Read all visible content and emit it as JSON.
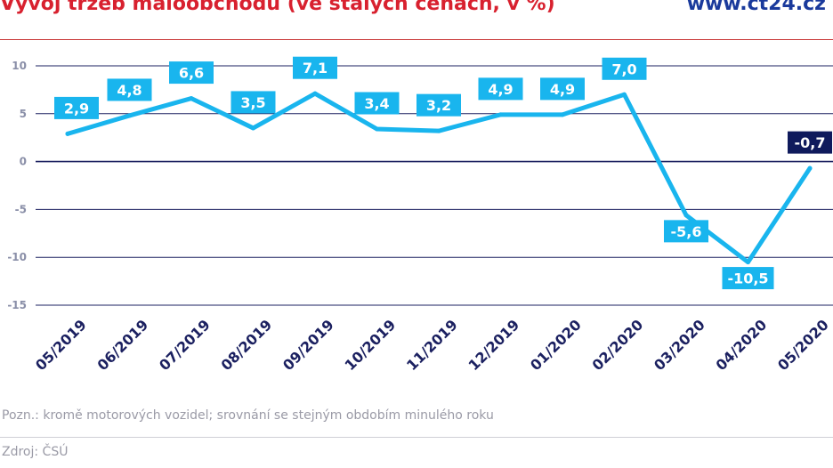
{
  "header": {
    "title": "Vývoj tržeb maloobchodu (ve stálých cenách, v %)",
    "brand": "www.ct24.cz"
  },
  "footer": {
    "note": "Pozn.: kromě motorových vozidel; srovnání se stejným obdobím minulého roku",
    "source": "Zdroj: ČSÚ"
  },
  "colors": {
    "title": "#d8212f",
    "brand": "#1a3a9c",
    "line": "#19b5ee",
    "highlight": "#0f1a5c",
    "axis_text": "#8a8fa8",
    "grid": "#1b2060"
  },
  "chart_data": {
    "type": "line",
    "categories": [
      "05/2019",
      "06/2019",
      "07/2019",
      "08/2019",
      "09/2019",
      "10/2019",
      "11/2019",
      "12/2019",
      "01/2020",
      "02/2020",
      "03/2020",
      "04/2020",
      "05/2020"
    ],
    "series": [
      {
        "values": [
          2.9,
          4.8,
          6.6,
          3.5,
          7.1,
          3.4,
          3.2,
          4.9,
          4.9,
          7.0,
          -5.6,
          -10.5,
          -0.7
        ],
        "labels": [
          "2,9",
          "4,8",
          "6,6",
          "3,5",
          "7,1",
          "3,4",
          "3,2",
          "4,9",
          "4,9",
          "7,0",
          "-5,6",
          "-10,5",
          "-0,7"
        ]
      }
    ],
    "highlight_index": 12,
    "yticks": [
      10,
      5,
      0,
      -5,
      -10,
      -15
    ],
    "ylim": [
      -15,
      10
    ],
    "grid": true
  }
}
